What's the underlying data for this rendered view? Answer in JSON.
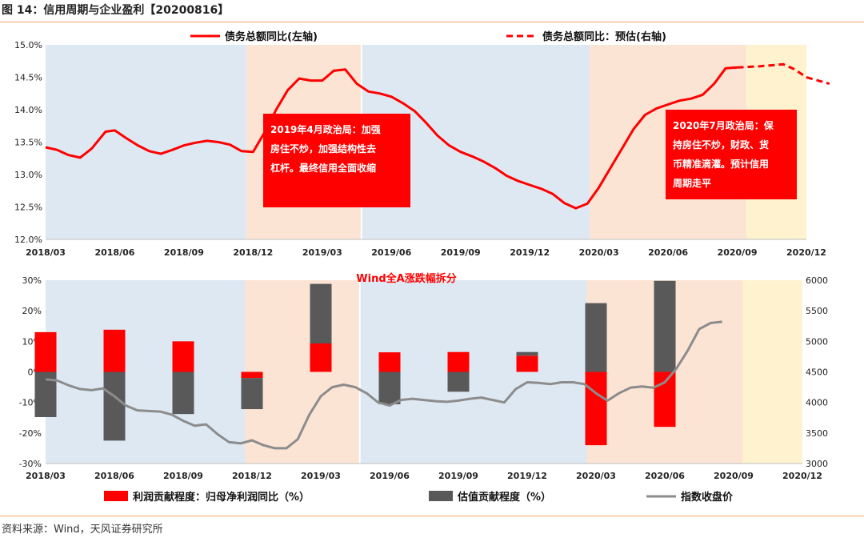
{
  "figure_title": "图 14：信用周期与企业盈利【20200816】",
  "source": "资料来源：Wind，天风证券研究所",
  "colors": {
    "red": "#ff0000",
    "gray_bar": "#595959",
    "index_line": "#8c8c8c",
    "shade_blue": "#dde8f3",
    "shade_peach": "#fbe4d4",
    "shade_yellow": "#fef2cf",
    "rule": "#f0a35e"
  },
  "chart_data": [
    {
      "type": "line",
      "x_ticks": [
        "2018/03",
        "2018/06",
        "2018/09",
        "2018/12",
        "2019/03",
        "2019/06",
        "2019/09",
        "2019/12",
        "2020/03",
        "2020/06",
        "2020/09",
        "2020/12"
      ],
      "y_ticks": [
        "15.0%",
        "14.5%",
        "14.0%",
        "13.5%",
        "13.0%",
        "12.5%",
        "12.0%"
      ],
      "ylim": [
        12.0,
        15.0
      ],
      "xlim": [
        0,
        33
      ],
      "shading": [
        {
          "from": 0,
          "to": 8.7,
          "color": "shade_blue"
        },
        {
          "from": 8.7,
          "to": 13.7,
          "color": "shade_peach"
        },
        {
          "from": 13.7,
          "to": 23.6,
          "color": "shade_blue"
        },
        {
          "from": 23.6,
          "to": 30.4,
          "color": "shade_peach"
        },
        {
          "from": 30.4,
          "to": 33,
          "color": "shade_yellow"
        }
      ],
      "series": [
        {
          "name": "债务总额同比(左轴)",
          "style": "solid",
          "points": [
            [
              0,
              13.42
            ],
            [
              0.5,
              13.38
            ],
            [
              1,
              13.3
            ],
            [
              1.5,
              13.26
            ],
            [
              2,
              13.4
            ],
            [
              2.6,
              13.66
            ],
            [
              3,
              13.68
            ],
            [
              3.5,
              13.56
            ],
            [
              4,
              13.45
            ],
            [
              4.5,
              13.36
            ],
            [
              5,
              13.32
            ],
            [
              5.5,
              13.38
            ],
            [
              6,
              13.45
            ],
            [
              6.5,
              13.49
            ],
            [
              7,
              13.52
            ],
            [
              7.5,
              13.5
            ],
            [
              8,
              13.46
            ],
            [
              8.5,
              13.36
            ],
            [
              9,
              13.35
            ],
            [
              9.5,
              13.65
            ],
            [
              10,
              14.0
            ],
            [
              10.5,
              14.3
            ],
            [
              11,
              14.48
            ],
            [
              11.5,
              14.45
            ],
            [
              12,
              14.45
            ],
            [
              12.5,
              14.6
            ],
            [
              13,
              14.62
            ],
            [
              13.5,
              14.4
            ],
            [
              14,
              14.28
            ],
            [
              14.5,
              14.25
            ],
            [
              15,
              14.2
            ],
            [
              15.5,
              14.1
            ],
            [
              16,
              13.98
            ],
            [
              16.5,
              13.8
            ],
            [
              17,
              13.6
            ],
            [
              17.5,
              13.45
            ],
            [
              18,
              13.35
            ],
            [
              18.5,
              13.28
            ],
            [
              19,
              13.2
            ],
            [
              19.5,
              13.1
            ],
            [
              20,
              12.98
            ],
            [
              20.5,
              12.9
            ],
            [
              21,
              12.84
            ],
            [
              21.5,
              12.78
            ],
            [
              22,
              12.7
            ],
            [
              22.5,
              12.56
            ],
            [
              23,
              12.48
            ],
            [
              23.5,
              12.55
            ],
            [
              24,
              12.8
            ],
            [
              24.5,
              13.1
            ],
            [
              25,
              13.4
            ],
            [
              25.5,
              13.7
            ],
            [
              26,
              13.92
            ],
            [
              26.5,
              14.02
            ],
            [
              27,
              14.08
            ],
            [
              27.5,
              14.14
            ],
            [
              28,
              14.17
            ],
            [
              28.5,
              14.23
            ],
            [
              29,
              14.4
            ],
            [
              29.5,
              14.64
            ],
            [
              30,
              14.65
            ]
          ]
        },
        {
          "name": "债务总额同比：预估(右轴)",
          "style": "dashed",
          "points": [
            [
              30,
              14.65
            ],
            [
              31,
              14.67
            ],
            [
              32,
              14.7
            ],
            [
              32.5,
              14.62
            ],
            [
              33,
              14.5
            ],
            [
              34,
              14.4
            ]
          ]
        }
      ],
      "annotations": [
        {
          "lines": [
            "2019年4月政治局：加强",
            "房住不炒，加强结构性去",
            "杠杆。最终信用全面收缩"
          ],
          "anchor": "2019/03"
        },
        {
          "lines": [
            "2020年7月政治局：保",
            "持房住不炒，财政、货",
            "币精准滴灌。预计信用",
            "周期走平"
          ],
          "anchor": "2020/09"
        }
      ]
    },
    {
      "type": "bar",
      "title": "Wind全A涨跌幅拆分",
      "x_ticks": [
        "2018/03",
        "2018/06",
        "2018/09",
        "2018/12",
        "2019/03",
        "2019/06",
        "2019/09",
        "2019/12",
        "2020/03",
        "2020/06",
        "2020/09",
        "2020/12"
      ],
      "y_left_ticks": [
        "30%",
        "20%",
        "10%",
        "0%",
        "-10%",
        "-20%",
        "-30%"
      ],
      "y_right_ticks": [
        "6000",
        "5500",
        "5000",
        "4500",
        "4000",
        "3500",
        "3000"
      ],
      "ylim_left": [
        -30,
        30
      ],
      "ylim_right": [
        3000,
        6000
      ],
      "categories": [
        "2018/03",
        "2018/06",
        "2018/09",
        "2018/12",
        "2019/03",
        "2019/06",
        "2019/09",
        "2019/12",
        "2020/03",
        "2020/06"
      ],
      "series": [
        {
          "name": "利润贡献程度：归母净利润同比（%）",
          "values": [
            13,
            13.8,
            10,
            -2,
            9.3,
            6.4,
            6.5,
            5.3,
            -24,
            -18
          ]
        },
        {
          "name": "估值贡献程度（%）",
          "values": [
            -14.8,
            -22.5,
            -13.8,
            -10.2,
            19.5,
            -10.6,
            -6.5,
            1.2,
            22.5,
            29.8
          ]
        }
      ],
      "index_line": {
        "name": "指数收盘价",
        "points": [
          [
            0,
            4380
          ],
          [
            0.5,
            4360
          ],
          [
            1,
            4280
          ],
          [
            1.5,
            4220
          ],
          [
            2,
            4200
          ],
          [
            2.5,
            4230
          ],
          [
            3,
            4100
          ],
          [
            3.5,
            3950
          ],
          [
            4,
            3870
          ],
          [
            4.5,
            3860
          ],
          [
            5,
            3850
          ],
          [
            5.5,
            3800
          ],
          [
            6,
            3700
          ],
          [
            6.5,
            3620
          ],
          [
            7,
            3640
          ],
          [
            7.5,
            3480
          ],
          [
            8,
            3350
          ],
          [
            8.5,
            3330
          ],
          [
            9,
            3380
          ],
          [
            9.5,
            3300
          ],
          [
            10,
            3250
          ],
          [
            10.5,
            3250
          ],
          [
            11,
            3400
          ],
          [
            11.5,
            3800
          ],
          [
            12,
            4100
          ],
          [
            12.5,
            4250
          ],
          [
            13,
            4290
          ],
          [
            13.5,
            4250
          ],
          [
            14,
            4150
          ],
          [
            14.5,
            4000
          ],
          [
            15,
            3950
          ],
          [
            15.5,
            4040
          ],
          [
            16,
            4060
          ],
          [
            16.5,
            4040
          ],
          [
            17,
            4020
          ],
          [
            17.5,
            4010
          ],
          [
            18,
            4030
          ],
          [
            18.5,
            4060
          ],
          [
            19,
            4080
          ],
          [
            19.5,
            4040
          ],
          [
            20,
            4000
          ],
          [
            20.5,
            4220
          ],
          [
            21,
            4330
          ],
          [
            21.5,
            4320
          ],
          [
            22,
            4300
          ],
          [
            22.5,
            4330
          ],
          [
            23,
            4330
          ],
          [
            23.5,
            4300
          ],
          [
            24,
            4150
          ],
          [
            24.5,
            4030
          ],
          [
            25,
            4150
          ],
          [
            25.5,
            4240
          ],
          [
            26,
            4260
          ],
          [
            26.5,
            4240
          ],
          [
            27,
            4330
          ],
          [
            27.5,
            4550
          ],
          [
            28,
            4850
          ],
          [
            28.5,
            5200
          ],
          [
            29,
            5300
          ],
          [
            29.5,
            5320
          ]
        ]
      }
    }
  ]
}
